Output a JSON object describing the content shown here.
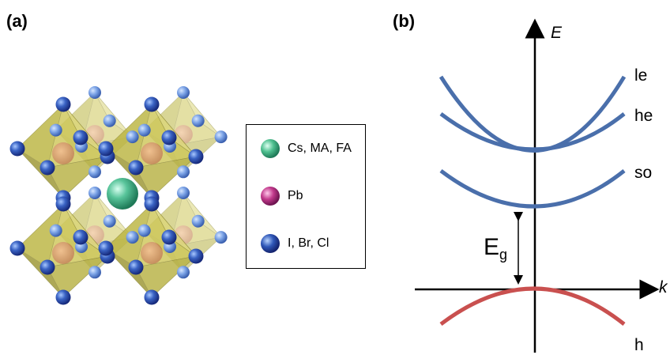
{
  "panel_a": {
    "label": "(a)",
    "legend": [
      {
        "label": "Cs, MA, FA",
        "color": "#4fc090",
        "icon": "green-sphere"
      },
      {
        "label": "Pb",
        "color": "#c23a8c",
        "icon": "magenta-sphere"
      },
      {
        "label": "I, Br, Cl",
        "color": "#2f57b8",
        "icon": "blue-sphere"
      }
    ],
    "colors": {
      "octahedron": "#c8c24e",
      "lead": "#d0884a",
      "halide": "#2f57b8",
      "cation": "#4fc090"
    }
  },
  "panel_b": {
    "label": "(b)",
    "axis_y": "E",
    "axis_x": "k",
    "bands": [
      {
        "name": "le",
        "type": "conduction",
        "color": "#4a6fab"
      },
      {
        "name": "he",
        "type": "conduction",
        "color": "#4a6fab"
      },
      {
        "name": "so",
        "type": "conduction",
        "color": "#4a6fab"
      },
      {
        "name": "h",
        "type": "valence",
        "color": "#c9504f"
      }
    ],
    "gap_label": "E",
    "gap_subscript": "g"
  }
}
